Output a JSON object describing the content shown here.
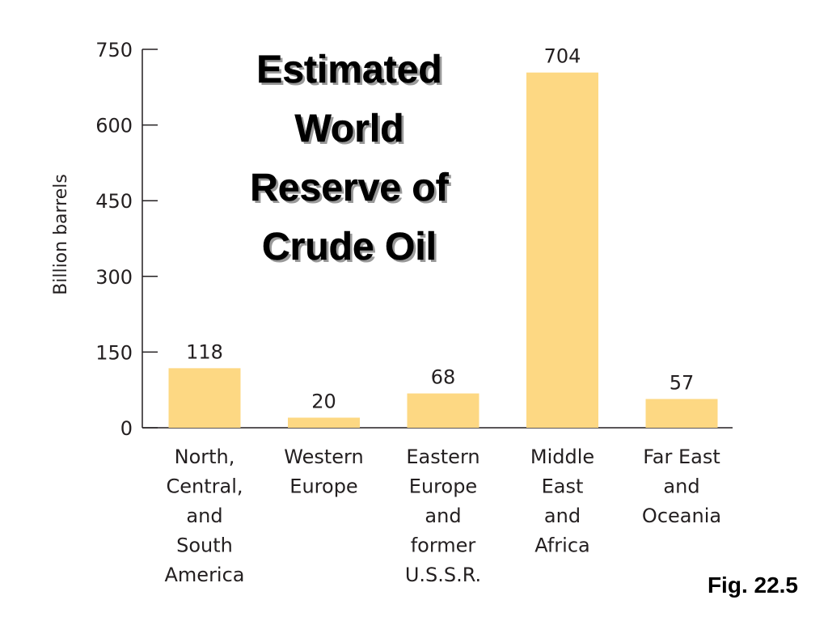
{
  "chart_data": {
    "type": "bar",
    "title_lines": [
      "Estimated",
      "World",
      "Reserve of",
      "Crude Oil"
    ],
    "ylabel": "Billion barrels",
    "ylim": [
      0,
      750
    ],
    "yticks": [
      0,
      150,
      300,
      450,
      600,
      750
    ],
    "categories": [
      [
        "North,",
        "Central,",
        "and",
        "South",
        "America"
      ],
      [
        "Western",
        "Europe"
      ],
      [
        "Eastern",
        "Europe",
        "and",
        "former",
        "U.S.S.R."
      ],
      [
        "Middle",
        "East",
        "and",
        "Africa"
      ],
      [
        "Far East",
        "and",
        "Oceania"
      ]
    ],
    "values": [
      118,
      20,
      68,
      704,
      57
    ],
    "data_labels": [
      "118",
      "20",
      "68",
      "704",
      "57"
    ],
    "bar_color": "#fdd883",
    "axis_color": "#231f20",
    "grid": false
  },
  "figure_label": "Fig. 22.5"
}
